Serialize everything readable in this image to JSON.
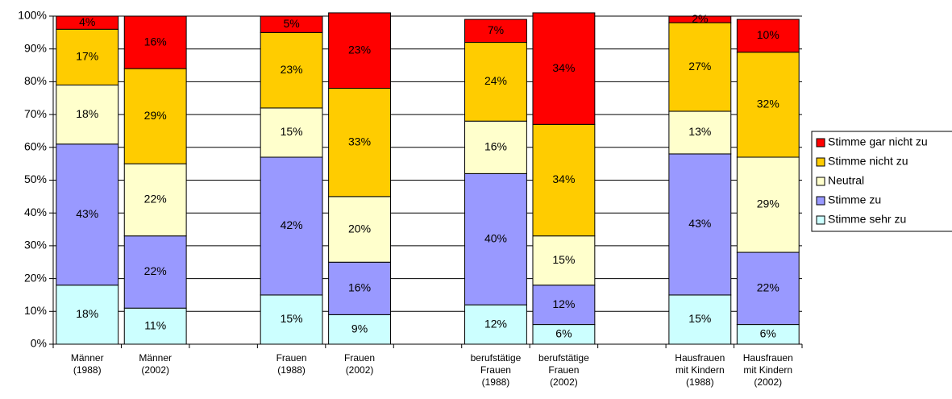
{
  "chart_data": {
    "type": "stacked_bar",
    "categories": [
      "Männer\n(1988)",
      "Männer\n(2002)",
      null,
      "Frauen\n(1988)",
      "Frauen\n(2002)",
      null,
      "berufstätige\nFrauen\n(1988)",
      "berufstätige\nFrauen\n(2002)",
      null,
      "Hausfrauen\nmit Kindern\n(1988)",
      "Hausfrauen\nmit Kindern\n(2002)"
    ],
    "series": [
      {
        "name": "Stimme sehr zu",
        "color": "#ccffff",
        "values": [
          18,
          11,
          null,
          15,
          9,
          null,
          12,
          6,
          null,
          15,
          6
        ],
        "value_labels": [
          "18%",
          "11%",
          null,
          "15%",
          "9%",
          null,
          "12%",
          "6%",
          null,
          "15%",
          "6%"
        ]
      },
      {
        "name": "Stimme zu",
        "color": "#9999ff",
        "values": [
          43,
          22,
          null,
          42,
          16,
          null,
          40,
          12,
          null,
          43,
          22
        ],
        "value_labels": [
          "43%",
          "22%",
          null,
          "42%",
          "16%",
          null,
          "40%",
          "12%",
          null,
          "43%",
          "22%"
        ]
      },
      {
        "name": "Neutral",
        "color": "#ffffcc",
        "values": [
          18,
          22,
          null,
          15,
          20,
          null,
          16,
          15,
          null,
          13,
          29
        ],
        "value_labels": [
          "18%",
          "22%",
          null,
          "15%",
          "20%",
          null,
          "16%",
          "15%",
          null,
          "13%",
          "29%"
        ]
      },
      {
        "name": "Stimme nicht zu",
        "color": "#ffcc00",
        "values": [
          17,
          29,
          null,
          23,
          33,
          null,
          24,
          34,
          null,
          27,
          32
        ],
        "value_labels": [
          "17%",
          "29%",
          null,
          "23%",
          "33%",
          null,
          "24%",
          "34%",
          null,
          "27%",
          "32%"
        ]
      },
      {
        "name": "Stimme gar nicht zu",
        "color": "#ff0000",
        "values": [
          4,
          16,
          null,
          5,
          23,
          null,
          7,
          34,
          null,
          2,
          10
        ],
        "value_labels": [
          "4%",
          "16%",
          null,
          "5%",
          "23%",
          null,
          "7%",
          "34%",
          null,
          "2%",
          "10%"
        ]
      }
    ],
    "ylim": [
      0,
      100
    ],
    "yticks": [
      {
        "value": 0,
        "label": "0%"
      },
      {
        "value": 10,
        "label": "10%"
      },
      {
        "value": 20,
        "label": "20%"
      },
      {
        "value": 30,
        "label": "30%"
      },
      {
        "value": 40,
        "label": "40%"
      },
      {
        "value": 50,
        "label": "50%"
      },
      {
        "value": 60,
        "label": "60%"
      },
      {
        "value": 70,
        "label": "70%"
      },
      {
        "value": 80,
        "label": "80%"
      },
      {
        "value": 90,
        "label": "90%"
      },
      {
        "value": 100,
        "label": "100%"
      }
    ],
    "grid": true,
    "legend": "right"
  }
}
